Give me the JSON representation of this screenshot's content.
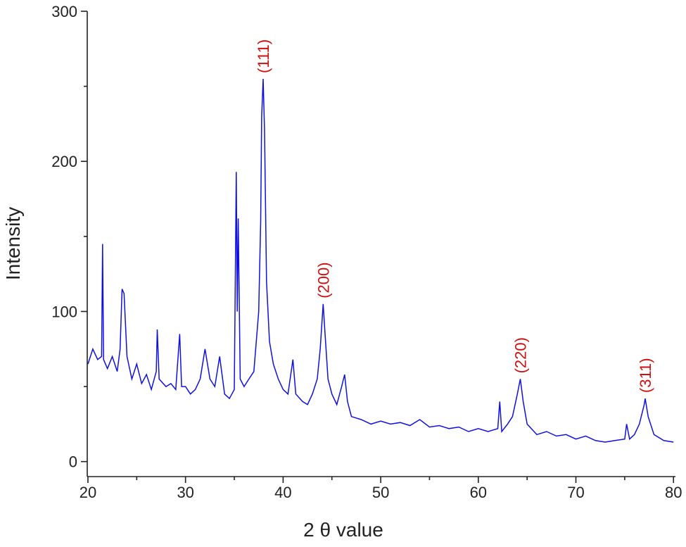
{
  "chart_data": {
    "type": "line",
    "xlabel": "2 θ value",
    "ylabel": "Intensity",
    "color": "#1010e0",
    "x": [
      20,
      20.5,
      21,
      21.4,
      21.5,
      21.6,
      22,
      22.5,
      23,
      23.3,
      23.5,
      23.7,
      24,
      24.5,
      25,
      25.5,
      26,
      26.5,
      27,
      27.1,
      27.3,
      28,
      28.5,
      29,
      29.4,
      29.6,
      30,
      30.5,
      31,
      31.5,
      32,
      32.5,
      33,
      33.5,
      34,
      34.5,
      35,
      35.2,
      35.3,
      35.4,
      35.6,
      36,
      36.5,
      37,
      37.5,
      37.7,
      37.8,
      37.95,
      38.1,
      38.3,
      38.6,
      39,
      39.5,
      40,
      40.5,
      41,
      41.3,
      42,
      42.5,
      43,
      43.5,
      43.8,
      44,
      44.1,
      44.3,
      44.6,
      45,
      45.5,
      46,
      46.3,
      46.6,
      47,
      48,
      49,
      50,
      51,
      52,
      53,
      54,
      55,
      56,
      57,
      58,
      59,
      60,
      61,
      62,
      62.2,
      62.4,
      63,
      63.5,
      64,
      64.3,
      64.6,
      65,
      66,
      67,
      68,
      69,
      70,
      71,
      72,
      73,
      74,
      75,
      75.2,
      75.5,
      76,
      76.5,
      77,
      77.1,
      77.4,
      78,
      79,
      80
    ],
    "values": [
      65,
      75,
      68,
      70,
      145,
      68,
      62,
      70,
      60,
      75,
      115,
      112,
      70,
      55,
      65,
      52,
      58,
      48,
      60,
      88,
      55,
      50,
      52,
      48,
      85,
      50,
      50,
      45,
      48,
      55,
      75,
      55,
      50,
      70,
      45,
      42,
      48,
      193,
      100,
      162,
      55,
      50,
      55,
      60,
      100,
      160,
      230,
      255,
      220,
      120,
      80,
      65,
      55,
      48,
      45,
      68,
      45,
      40,
      38,
      45,
      55,
      75,
      95,
      105,
      85,
      55,
      45,
      38,
      50,
      58,
      40,
      30,
      28,
      25,
      27,
      25,
      26,
      24,
      28,
      23,
      24,
      22,
      23,
      20,
      22,
      20,
      22,
      40,
      20,
      25,
      30,
      45,
      55,
      40,
      25,
      18,
      20,
      17,
      18,
      15,
      17,
      14,
      13,
      14,
      15,
      25,
      15,
      18,
      25,
      38,
      42,
      30,
      18,
      14,
      13
    ],
    "xlim": [
      19.93,
      80.2
    ],
    "ylim": [
      -10,
      300
    ],
    "xticks": [
      20,
      30,
      40,
      50,
      60,
      70,
      80
    ],
    "yticks": [
      0,
      100,
      200,
      300
    ],
    "xticks_minor": [
      25,
      35,
      45,
      55,
      65,
      75
    ],
    "yticks_minor": [
      50,
      150,
      250
    ],
    "annotation_color": "#cc1111",
    "annotations": [
      {
        "text": "(111)",
        "x": 37.95,
        "y": 255
      },
      {
        "text": "(200)",
        "x": 44.1,
        "y": 105
      },
      {
        "text": "(220)",
        "x": 64.3,
        "y": 55
      },
      {
        "text": "(311)",
        "x": 77.1,
        "y": 42
      }
    ]
  }
}
